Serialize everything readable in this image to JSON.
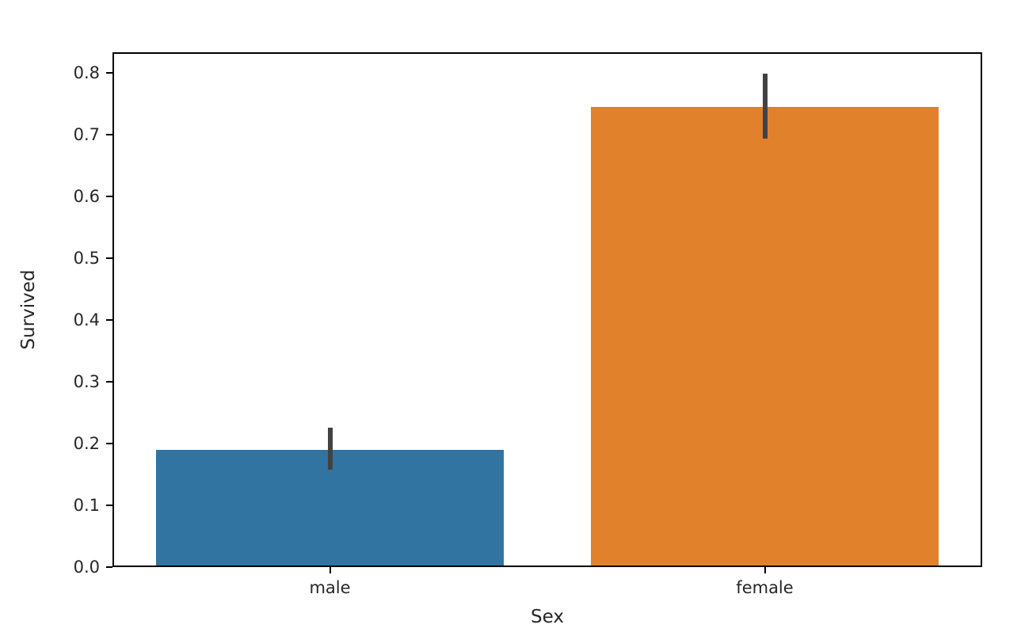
{
  "chart_data": {
    "type": "bar",
    "title": "",
    "xlabel": "Sex",
    "ylabel": "Survived",
    "categories": [
      "male",
      "female"
    ],
    "values": [
      0.19,
      0.745
    ],
    "error_bars": [
      {
        "low": 0.158,
        "high": 0.226
      },
      {
        "low": 0.694,
        "high": 0.799
      }
    ],
    "bar_colors": [
      "#3274a1",
      "#e1812c"
    ],
    "error_bar_color": "#424242",
    "spine_color": "#000000",
    "tick_label_color": "#262626",
    "ylim": [
      0,
      0.8333
    ],
    "yticks": [
      0.0,
      0.1,
      0.2,
      0.3,
      0.4,
      0.5,
      0.6,
      0.7,
      0.8
    ],
    "ytick_labels": [
      "0.0",
      "0.1",
      "0.2",
      "0.3",
      "0.4",
      "0.5",
      "0.6",
      "0.7",
      "0.8"
    ],
    "grid": false,
    "legend": null,
    "bar_rel_width": 0.8
  }
}
